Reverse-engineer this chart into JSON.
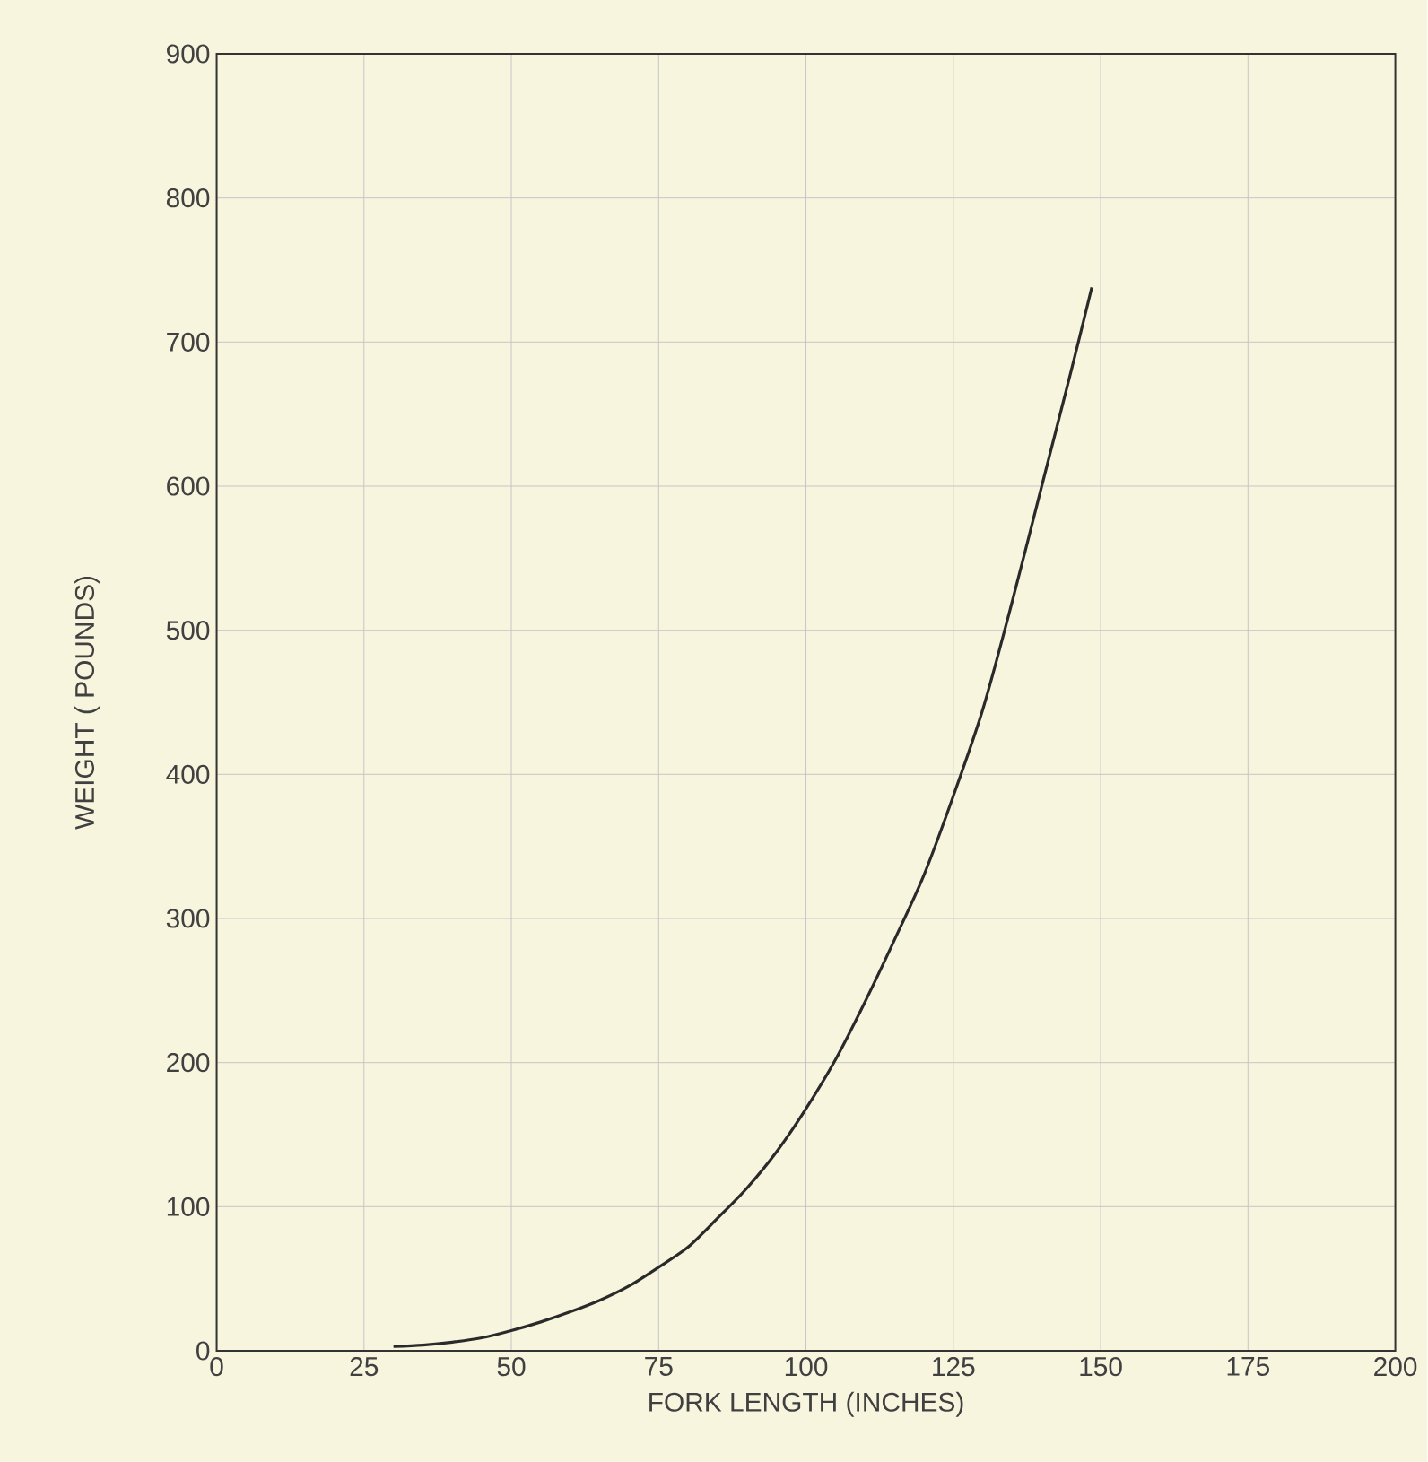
{
  "chart_data": {
    "type": "line",
    "xlabel": "FORK LENGTH (INCHES)",
    "ylabel": "WEIGHT ( POUNDS)",
    "x": [
      30,
      35,
      40,
      45,
      50,
      55,
      60,
      65,
      70,
      75,
      80,
      85,
      90,
      95,
      100,
      105,
      110,
      115,
      120,
      125,
      130,
      135,
      140,
      145,
      148.5
    ],
    "values": [
      3,
      4,
      6,
      9,
      14,
      20,
      27,
      35,
      45,
      58,
      72,
      92,
      113,
      138,
      168,
      202,
      242,
      285,
      330,
      385,
      445,
      520,
      600,
      680,
      738
    ],
    "color": "#2a2a2a",
    "xlim": [
      0,
      200
    ],
    "ylim": [
      0,
      900
    ],
    "xticks": [
      0,
      25,
      50,
      75,
      100,
      125,
      150,
      175,
      200
    ],
    "yticks": [
      0,
      100,
      200,
      300,
      400,
      500,
      600,
      700,
      800,
      900
    ],
    "grid": true,
    "marker": "none",
    "line_style": "solid"
  }
}
